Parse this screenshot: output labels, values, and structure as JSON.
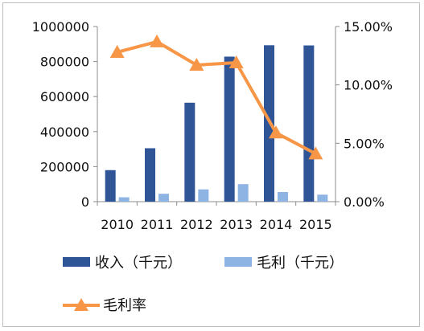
{
  "chart_data": {
    "type": "bar",
    "categories": [
      "2010",
      "2011",
      "2012",
      "2013",
      "2014",
      "2015"
    ],
    "series": [
      {
        "name": "收入（千元）",
        "type": "bar",
        "axis": "left",
        "color": "#2f5597",
        "values": [
          180000,
          305000,
          565000,
          828000,
          893000,
          892000
        ]
      },
      {
        "name": "毛利（千元）",
        "type": "bar",
        "axis": "left",
        "color": "#8eb4e3",
        "values": [
          25000,
          45000,
          70000,
          100000,
          55000,
          40000
        ]
      },
      {
        "name": "毛利率",
        "type": "line",
        "axis": "right",
        "color": "#f79646",
        "values": [
          0.128,
          0.137,
          0.117,
          0.119,
          0.059,
          0.041
        ]
      }
    ],
    "y_left": {
      "ylim": [
        0,
        1000000
      ],
      "ticks": [
        0,
        200000,
        400000,
        600000,
        800000,
        1000000
      ],
      "tick_labels": [
        "0",
        "200000",
        "400000",
        "600000",
        "800000",
        "1000000"
      ]
    },
    "y_right": {
      "ylim": [
        0,
        0.15
      ],
      "ticks": [
        0,
        0.05,
        0.1,
        0.15
      ],
      "tick_labels": [
        "0.00%",
        "5.00%",
        "10.00%",
        "15.00%"
      ]
    },
    "grid": false,
    "legend_position": "bottom",
    "title": "",
    "xlabel": "",
    "ylabel": ""
  }
}
